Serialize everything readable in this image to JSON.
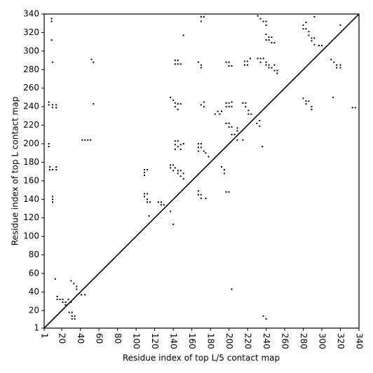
{
  "chart_data": {
    "type": "scatter",
    "xlabel": "Residue index of top L/5 contact map",
    "ylabel": "Residue index of top L contact map",
    "xlim": [
      1,
      340
    ],
    "ylim": [
      1,
      340
    ],
    "xticks": [
      1,
      20,
      40,
      60,
      80,
      100,
      120,
      140,
      160,
      180,
      200,
      220,
      240,
      260,
      280,
      300,
      320,
      340
    ],
    "yticks": [
      1,
      20,
      40,
      60,
      80,
      100,
      120,
      140,
      160,
      180,
      200,
      220,
      240,
      260,
      280,
      300,
      320,
      340
    ],
    "color": "#000000",
    "x": [
      9,
      9,
      9,
      10,
      6,
      6,
      10,
      10,
      14,
      14,
      6,
      6,
      7,
      7,
      10,
      14,
      14,
      10,
      10,
      10,
      13,
      42,
      45,
      48,
      51,
      52,
      54,
      54,
      109,
      109,
      109,
      112,
      109,
      109,
      112,
      112,
      115,
      112,
      114,
      124,
      127,
      127,
      130,
      137,
      137,
      140,
      140,
      142,
      145,
      145,
      148,
      148,
      151,
      151,
      137,
      140,
      142,
      142,
      145,
      145,
      148,
      137,
      140,
      142,
      142,
      145,
      145,
      148,
      142,
      142,
      142,
      145,
      145,
      148,
      148,
      151,
      151,
      167,
      167,
      167,
      170,
      170,
      173,
      175,
      178,
      167,
      167,
      170,
      170,
      175,
      167,
      170,
      170,
      170,
      170,
      173,
      170,
      173,
      173,
      192,
      195,
      195,
      197,
      200,
      197,
      200,
      200,
      203,
      192,
      197,
      197,
      200,
      200,
      203,
      203,
      197,
      200,
      200,
      203,
      217,
      217,
      220,
      220,
      223,
      231,
      234,
      237,
      234,
      231,
      234,
      237,
      240,
      240,
      297,
      300,
      310,
      313,
      316,
      316,
      320,
      320,
      312,
      320,
      333,
      336,
      15,
      15,
      18,
      21,
      21,
      24,
      24,
      27,
      30,
      28,
      31,
      31,
      34,
      31,
      34,
      30,
      33,
      36,
      36,
      41,
      45,
      185,
      188,
      190,
      203,
      206,
      209,
      209,
      209,
      215,
      218,
      218,
      221,
      221,
      224,
      215,
      203,
      230,
      233,
      233,
      236,
      237,
      240,
      240,
      240,
      243,
      243,
      246,
      246,
      249,
      240,
      240,
      243,
      243,
      246,
      249,
      249,
      252,
      252,
      280,
      283,
      283,
      286,
      289,
      289,
      280,
      280,
      283,
      283,
      286,
      286,
      289,
      289,
      292,
      292,
      292
    ],
    "values": [
      335,
      332,
      312,
      288,
      245,
      242,
      242,
      239,
      242,
      239,
      200,
      197,
      175,
      172,
      172,
      175,
      172,
      143,
      140,
      137,
      54,
      204,
      204,
      204,
      204,
      291,
      288,
      243,
      172,
      169,
      166,
      172,
      146,
      143,
      146,
      140,
      137,
      137,
      122,
      137,
      137,
      134,
      134,
      177,
      174,
      177,
      171,
      174,
      171,
      168,
      171,
      165,
      168,
      162,
      250,
      247,
      244,
      240,
      243,
      237,
      243,
      127,
      113,
      290,
      286,
      290,
      286,
      286,
      203,
      199,
      194,
      203,
      197,
      199,
      194,
      200,
      317,
      200,
      196,
      192,
      200,
      196,
      192,
      190,
      186,
      149,
      145,
      145,
      141,
      141,
      288,
      285,
      282,
      337,
      332,
      337,
      242,
      245,
      240,
      175,
      172,
      168,
      148,
      148,
      288,
      288,
      284,
      284,
      235,
      240,
      244,
      244,
      240,
      240,
      245,
      222,
      218,
      222,
      218,
      289,
      285,
      289,
      285,
      292,
      292,
      292,
      292,
      288,
      338,
      335,
      332,
      332,
      328,
      306,
      306,
      291,
      288,
      285,
      282,
      285,
      282,
      250,
      328,
      239,
      239,
      35,
      32,
      32,
      32,
      29,
      29,
      26,
      32,
      29,
      18,
      18,
      14,
      14,
      11,
      11,
      52,
      49,
      46,
      43,
      37,
      37,
      232,
      235,
      232,
      210,
      210,
      217,
      214,
      204,
      244,
      244,
      240,
      236,
      232,
      232,
      204,
      43,
      222,
      219,
      225,
      197,
      14,
      11,
      318,
      312,
      315,
      312,
      315,
      309,
      309,
      288,
      285,
      285,
      282,
      282,
      285,
      279,
      279,
      276,
      249,
      246,
      243,
      246,
      240,
      237,
      328,
      324,
      331,
      324,
      321,
      317,
      314,
      311,
      314,
      307,
      337
    ]
  }
}
